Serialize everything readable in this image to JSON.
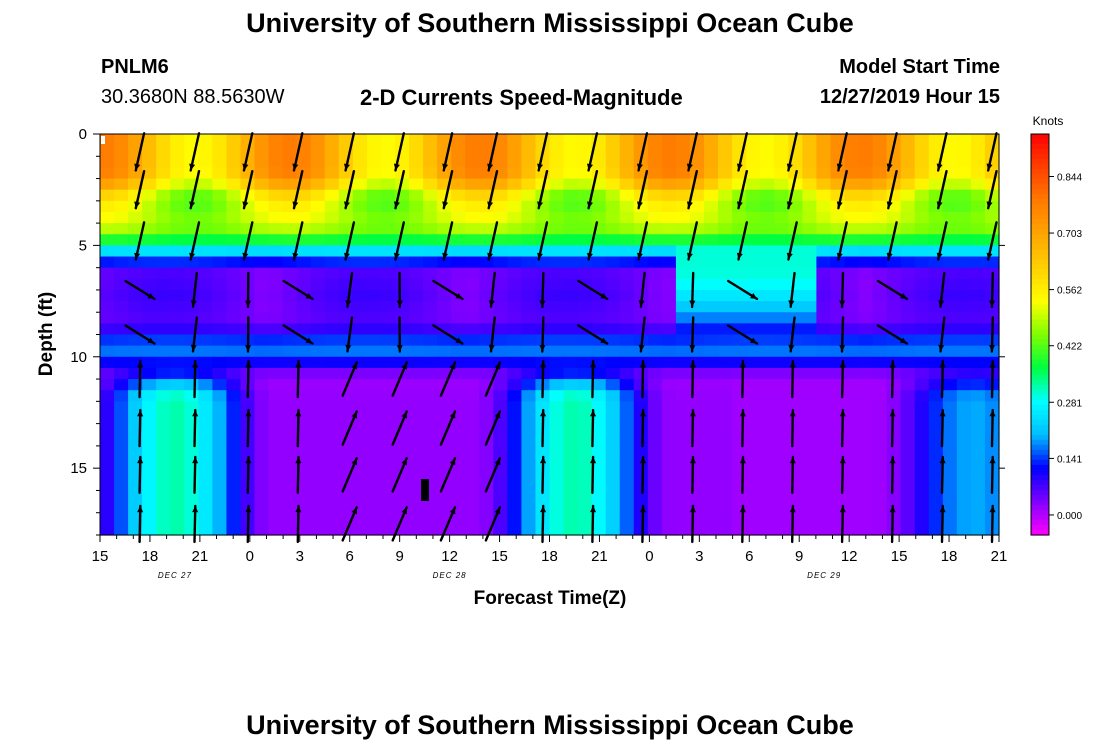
{
  "page": {
    "title_top": "University of Southern Mississippi Ocean Cube",
    "title_bottom": "University of Southern Mississippi Ocean Cube",
    "station": "PNLM6",
    "coords": "30.3680N 88.5630W",
    "chart_title": "2-D Currents Speed-Magnitude",
    "start_label": "Model Start Time",
    "start_value": "12/27/2019 Hour 15"
  },
  "chart_data": {
    "type": "heatmap",
    "title": "2-D Currents Speed-Magnitude",
    "xlabel": "Forecast Time(Z)",
    "ylabel": "Depth (ft)",
    "x_ticks": [
      "15",
      "18",
      "21",
      "0",
      "3",
      "6",
      "9",
      "12",
      "15",
      "18",
      "21",
      "0",
      "3",
      "6",
      "9",
      "12",
      "15",
      "18",
      "21"
    ],
    "x_range_hours": [
      0,
      54
    ],
    "date_labels": [
      {
        "label": "DEC 27",
        "tick_index": 1.5
      },
      {
        "label": "DEC 28",
        "tick_index": 7
      },
      {
        "label": "DEC 29",
        "tick_index": 14.5
      }
    ],
    "y_ticks": [
      0,
      5,
      10,
      15
    ],
    "ylim": [
      0,
      18
    ],
    "y_inverted": true,
    "colorbar": {
      "title": "Knots",
      "ticks": [
        "0.000",
        "0.141",
        "0.281",
        "0.422",
        "0.562",
        "0.703",
        "0.844"
      ],
      "range": [
        -0.05,
        0.95
      ],
      "colors": [
        "#ff00ff",
        "#7f00ff",
        "#0000ff",
        "#00bfff",
        "#00ffff",
        "#00ff40",
        "#80ff00",
        "#ffff00",
        "#ffd000",
        "#ffa500",
        "#ff7a00",
        "#ff4000",
        "#ff0000"
      ]
    },
    "vector_times_hours": [
      2.4,
      5.7,
      8.9,
      11.9,
      15.0,
      18.0,
      20.9,
      23.6,
      26.6,
      29.6,
      32.6,
      35.6,
      38.6,
      41.6,
      44.6,
      47.6,
      50.6,
      53.6
    ],
    "vector_depths_ft": [
      0.8,
      2.5,
      4.8,
      7.0,
      9.0,
      11.0,
      13.2,
      15.3,
      17.5
    ],
    "flow_regime": [
      {
        "t_start": 0,
        "t_end": 14,
        "surface": "southward",
        "deep": "northward"
      },
      {
        "t_start": 14,
        "t_end": 24,
        "surface": "southward",
        "deep": "north-northeast"
      },
      {
        "t_start": 24,
        "t_end": 40,
        "surface": "southward",
        "deep": "northward"
      },
      {
        "t_start": 40,
        "t_end": 54,
        "surface": "southward",
        "deep": "northward"
      }
    ]
  }
}
